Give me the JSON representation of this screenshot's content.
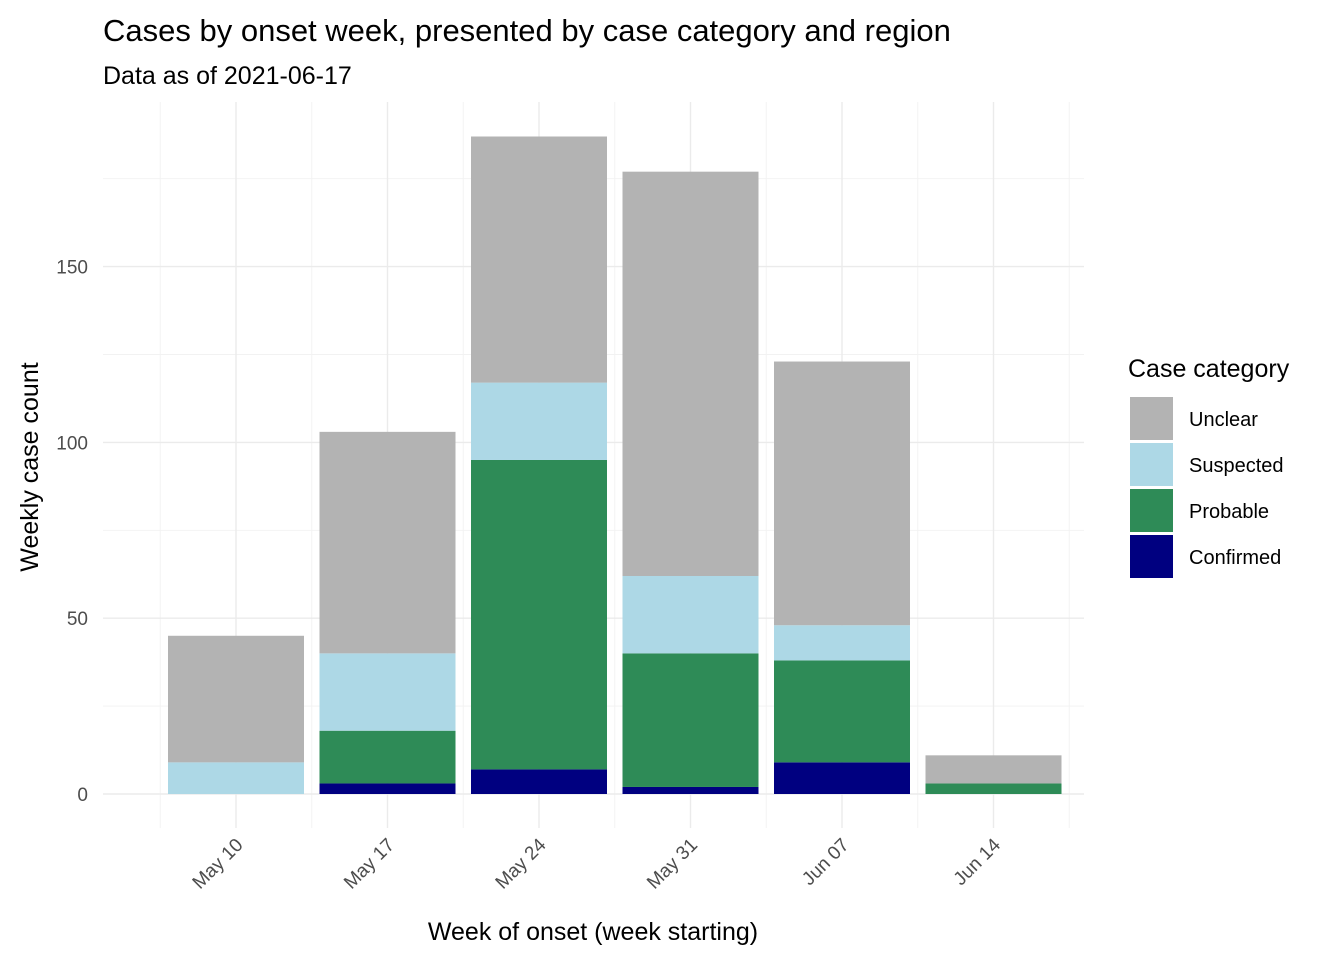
{
  "chart_data": {
    "type": "bar",
    "stacked": true,
    "title": "Cases by onset week, presented by case category and region",
    "subtitle": "Data as of 2021-06-17",
    "xlabel": "Week of onset (week starting)",
    "ylabel": "Weekly case count",
    "categories": [
      "May 10",
      "May 17",
      "May 24",
      "May 31",
      "Jun 07",
      "Jun 14"
    ],
    "ylim": [
      0,
      190
    ],
    "yticks": [
      0,
      50,
      100,
      150
    ],
    "grid": true,
    "legend": {
      "title": "Case category",
      "position": "right"
    },
    "series": [
      {
        "name": "Confirmed",
        "color": "#000080",
        "values": [
          0,
          3,
          7,
          2,
          9,
          0
        ]
      },
      {
        "name": "Probable",
        "color": "#2e8b57",
        "values": [
          0,
          15,
          88,
          38,
          29,
          3
        ]
      },
      {
        "name": "Suspected",
        "color": "#add8e6",
        "values": [
          9,
          22,
          22,
          22,
          10,
          0
        ]
      },
      {
        "name": "Unclear",
        "color": "#b3b3b3",
        "values": [
          36,
          63,
          70,
          115,
          75,
          8
        ]
      }
    ],
    "legend_order": [
      "Unclear",
      "Suspected",
      "Probable",
      "Confirmed"
    ]
  }
}
